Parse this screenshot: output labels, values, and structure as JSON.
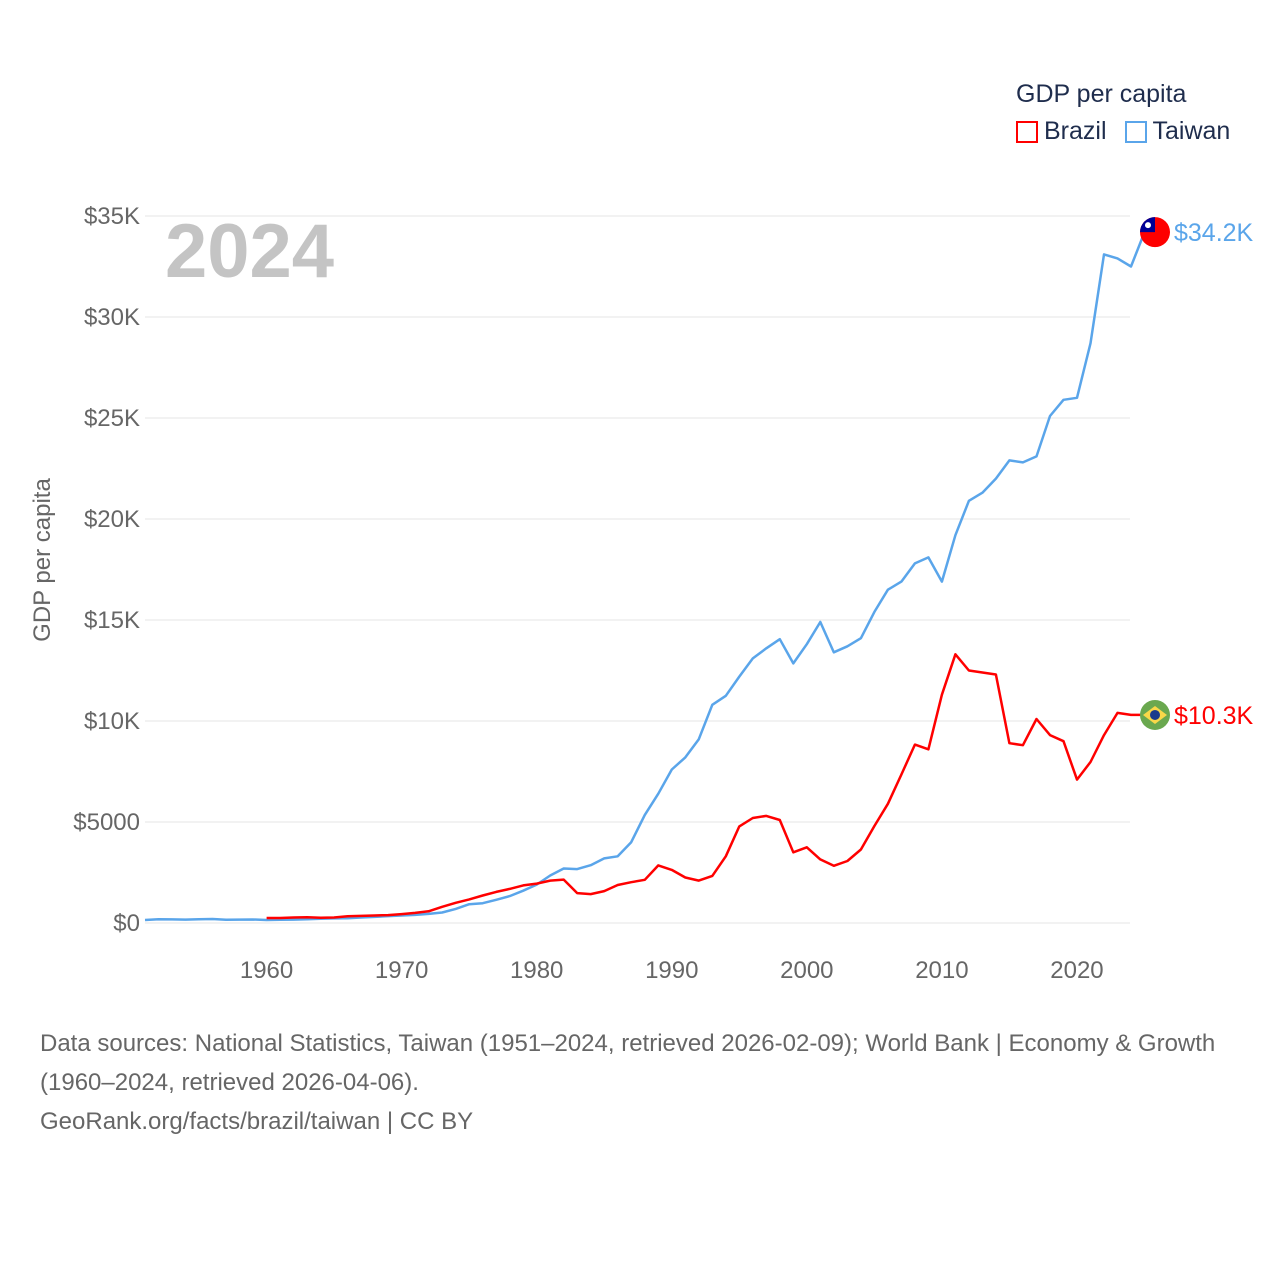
{
  "legend": {
    "title": "GDP per capita",
    "items": [
      {
        "name": "Brazil",
        "color": "#ff0000"
      },
      {
        "name": "Taiwan",
        "color": "#5aa5ea"
      }
    ]
  },
  "year_display": "2024",
  "chart_data": {
    "type": "line",
    "title": "GDP per capita",
    "xlabel": "",
    "ylabel": "GDP per capita",
    "xlim": [
      1951,
      2024
    ],
    "ylim": [
      0,
      35000
    ],
    "x_ticks": [
      1960,
      1970,
      1980,
      1990,
      2000,
      2010,
      2020
    ],
    "y_ticks": [
      0,
      5000,
      10000,
      15000,
      20000,
      25000,
      30000,
      35000
    ],
    "y_tick_labels": [
      "$0",
      "$5000",
      "$10K",
      "$15K",
      "$20K",
      "$25K",
      "$30K",
      "$35K"
    ],
    "grid": true,
    "series": [
      {
        "name": "Taiwan",
        "color": "#5aa5ea",
        "end_label": "$34.2K",
        "start_year": 1951,
        "values": [
          150,
          190,
          180,
          170,
          185,
          200,
          160,
          170,
          175,
          150,
          160,
          170,
          185,
          210,
          230,
          240,
          270,
          300,
          340,
          370,
          400,
          450,
          520,
          700,
          930,
          980,
          1150,
          1330,
          1600,
          1900,
          2350,
          2700,
          2670,
          2860,
          3200,
          3300,
          4000,
          5350,
          6400,
          7600,
          8200,
          9100,
          10800,
          11250,
          12200,
          13100,
          13600,
          14050,
          12850,
          13800,
          14900,
          13400,
          13700,
          14100,
          15400,
          16500,
          16900,
          17800,
          18100,
          16900,
          19200,
          20900,
          21300,
          22000,
          22900,
          22800,
          23100,
          25100,
          25900,
          26000,
          28700,
          33100,
          32900,
          32500,
          34200
        ]
      },
      {
        "name": "Brazil",
        "color": "#ff0000",
        "end_label": "$10.3K",
        "start_year": 1960,
        "values": [
          250,
          250,
          270,
          280,
          260,
          270,
          330,
          350,
          370,
          390,
          440,
          500,
          580,
          800,
          1000,
          1170,
          1360,
          1540,
          1690,
          1860,
          1950,
          2100,
          2150,
          1480,
          1430,
          1580,
          1880,
          2020,
          2140,
          2850,
          2630,
          2250,
          2100,
          2330,
          3300,
          4780,
          5200,
          5300,
          5100,
          3500,
          3750,
          3150,
          2830,
          3070,
          3640,
          4800,
          5900,
          7350,
          8830,
          8600,
          11300,
          13300,
          12500,
          12400,
          12300,
          8900,
          8800,
          10100,
          9300,
          9000,
          7100,
          7970,
          9300,
          10400,
          10300
        ]
      }
    ]
  },
  "footer": {
    "sources": "Data sources: National Statistics, Taiwan (1951–2024, retrieved 2026-02-09); World Bank | Economy & Growth (1960–2024, retrieved 2026-04-06).",
    "attribution": "GeoRank.org/facts/brazil/taiwan | CC BY"
  }
}
